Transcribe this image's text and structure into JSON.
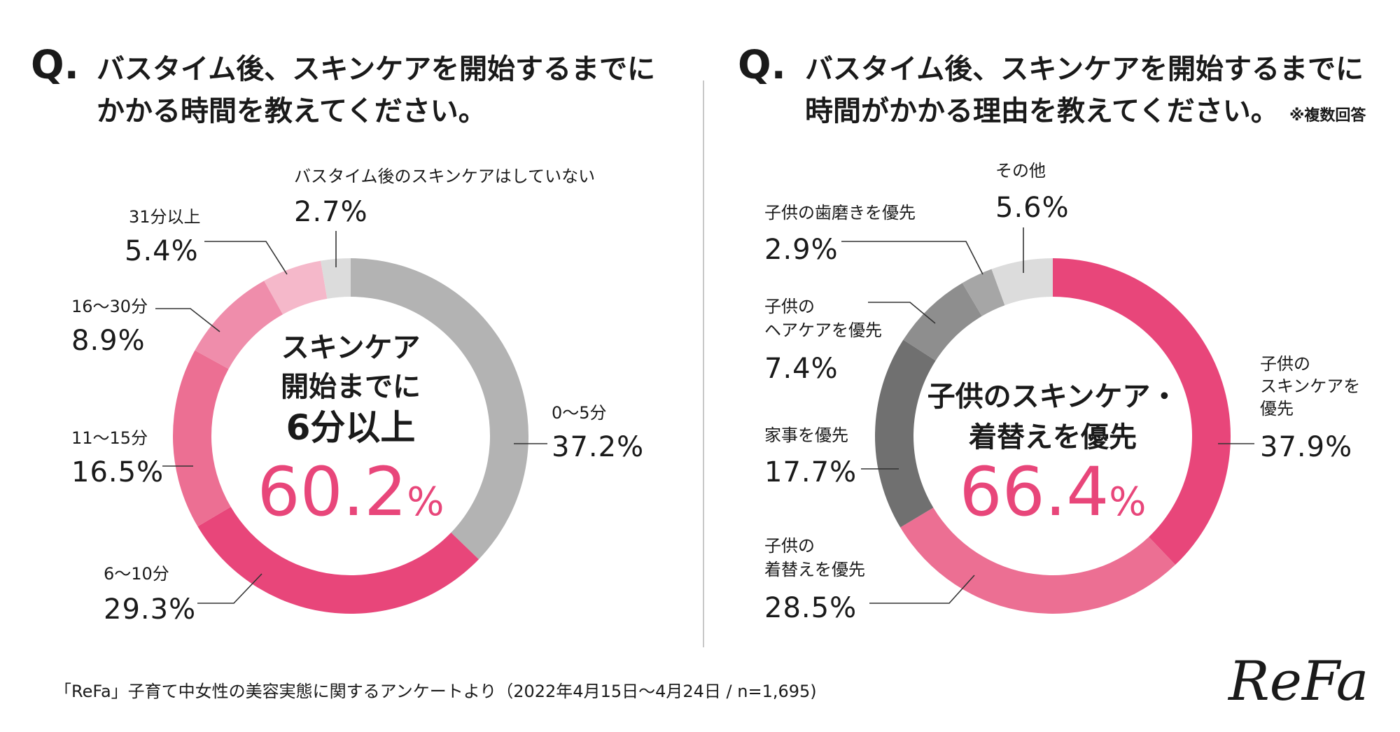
{
  "charts": {
    "left": {
      "q_mark": "Q.",
      "question": [
        "バスタイム後、スキンケアを開始するまでに",
        "かかる時間を教えてください。"
      ],
      "note": "",
      "center": {
        "line1": "スキンケア",
        "line2": "開始までに",
        "line3": "6分以上",
        "pct_num": "60.2",
        "pct_sign": "%"
      }
    },
    "right": {
      "q_mark": "Q.",
      "question": [
        "バスタイム後、スキンケアを開始するまでに",
        "時間がかかる理由を教えてください。"
      ],
      "note": "※複数回答",
      "center": {
        "line1": "子供のスキンケア・",
        "line2": "着替えを優先",
        "pct_num": "66.4",
        "pct_sign": "%"
      }
    }
  },
  "chart_data": [
    {
      "type": "pie",
      "donut": true,
      "title": "バスタイム後、スキンケアを開始するまでにかかる時間を教えてください。",
      "unit": "%",
      "slices": [
        {
          "name": "0〜5分",
          "value": 37.2,
          "color": "#b3b3b3"
        },
        {
          "name": "6〜10分",
          "value": 29.3,
          "color": "#e8467a"
        },
        {
          "name": "11〜15分",
          "value": 16.5,
          "color": "#ec6f93"
        },
        {
          "name": "16〜30分",
          "value": 8.9,
          "color": "#ef8dab"
        },
        {
          "name": "31分以上",
          "value": 5.4,
          "color": "#f5b8ca"
        },
        {
          "name": "バスタイム後のスキンケアはしていない",
          "value": 2.7,
          "color": "#dcdcdc"
        }
      ]
    },
    {
      "type": "pie",
      "donut": true,
      "title": "バスタイム後、スキンケアを開始するまでに時間がかかる理由を教えてください。",
      "unit": "%",
      "slices": [
        {
          "name": "子供のスキンケアを優先",
          "value": 37.9,
          "color": "#e8467a"
        },
        {
          "name": "子供の着替えを優先",
          "value": 28.5,
          "color": "#ec6f93"
        },
        {
          "name": "家事を優先",
          "value": 17.7,
          "color": "#707070"
        },
        {
          "name": "子供のヘアケアを優先",
          "value": 7.4,
          "color": "#8e8e8e"
        },
        {
          "name": "子供の歯磨きを優先",
          "value": 2.9,
          "color": "#a6a6a6"
        },
        {
          "name": "その他",
          "value": 5.6,
          "color": "#dcdcdc"
        }
      ]
    }
  ],
  "footer": {
    "source": "「ReFa」子育て中女性の美容実態に関するアンケートより（2022年4月15日〜4月24日 / n=1,695)"
  },
  "brand": {
    "logo": "ReFa"
  },
  "colors": {
    "accent": "#e8467a",
    "text": "#1a1a1a",
    "divider": "#c8c8c8"
  }
}
